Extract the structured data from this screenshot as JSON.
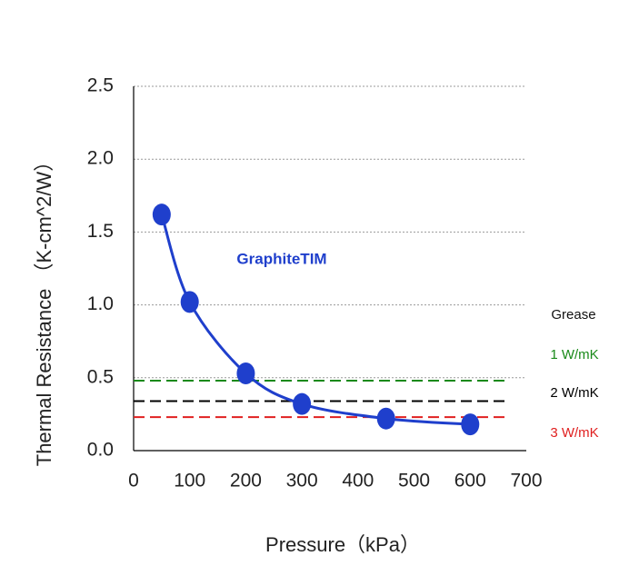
{
  "chart_data": {
    "type": "line",
    "x_label": "Pressure（kPa）",
    "y_label": "Thermal Resistance （K-cm^2/W）",
    "x": [
      50,
      100,
      200,
      300,
      450,
      600
    ],
    "series": [
      {
        "name": "GraphiteTIM",
        "color": "#1f3fcc",
        "values": [
          1.62,
          1.02,
          0.53,
          0.32,
          0.22,
          0.18
        ]
      }
    ],
    "xlim": [
      0,
      700
    ],
    "xticks": [
      0,
      100,
      200,
      300,
      400,
      500,
      600,
      700
    ],
    "ylim": [
      0,
      2.5
    ],
    "yticks": [
      {
        "value": 0,
        "label": "0.0"
      },
      {
        "value": 0.5,
        "label": "0.5"
      },
      {
        "value": 1,
        "label": "1.0"
      },
      {
        "value": 1.5,
        "label": "1.5"
      },
      {
        "value": 2,
        "label": "2.0"
      },
      {
        "value": 2.5,
        "label": "2.5"
      }
    ],
    "grid": true,
    "reference_lines": {
      "title": "Grease",
      "lines": [
        {
          "name": "1 W/mK",
          "value": 0.48,
          "color": "#1a8a1a"
        },
        {
          "name": "2 W/mK",
          "value": 0.34,
          "color": "#000000"
        },
        {
          "name": "3 W/mK",
          "value": 0.23,
          "color": "#e02020"
        }
      ]
    }
  }
}
